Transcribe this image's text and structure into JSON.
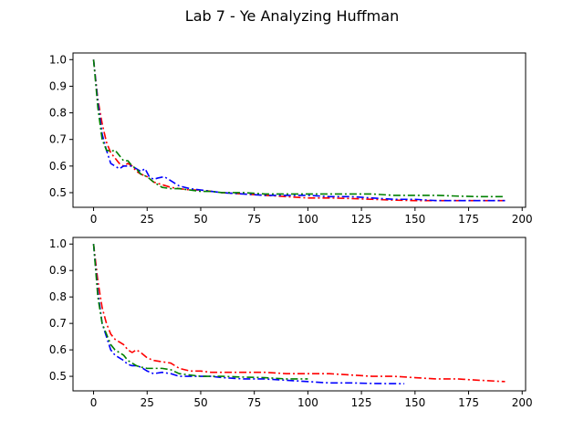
{
  "figure": {
    "suptitle": "Lab 7 - Ye Analyzing Huffman"
  },
  "chart_data": [
    {
      "type": "line",
      "title": "",
      "xlabel": "",
      "ylabel": "",
      "xlim": [
        -9.6,
        201.6
      ],
      "ylim": [
        0.445,
        1.025
      ],
      "xticks": [
        0,
        25,
        50,
        75,
        100,
        125,
        150,
        175,
        200
      ],
      "yticks": [
        0.5,
        0.6,
        0.7,
        0.8,
        0.9,
        1.0
      ],
      "ytick_labels": [
        "0.5",
        "0.6",
        "0.7",
        "0.8",
        "0.9",
        "1.0"
      ],
      "grid": false,
      "series": [
        {
          "color": "#ff0000",
          "style": "dashdot",
          "points": [
            [
              0,
              1.0
            ],
            [
              2,
              0.85
            ],
            [
              4,
              0.76
            ],
            [
              6,
              0.69
            ],
            [
              8,
              0.65
            ],
            [
              10,
              0.63
            ],
            [
              12,
              0.61
            ],
            [
              14,
              0.6
            ],
            [
              16,
              0.61
            ],
            [
              18,
              0.6
            ],
            [
              20,
              0.58
            ],
            [
              22,
              0.57
            ],
            [
              25,
              0.56
            ],
            [
              28,
              0.54
            ],
            [
              32,
              0.53
            ],
            [
              36,
              0.52
            ],
            [
              40,
              0.515
            ],
            [
              45,
              0.51
            ],
            [
              50,
              0.51
            ],
            [
              55,
              0.505
            ],
            [
              60,
              0.5
            ],
            [
              70,
              0.495
            ],
            [
              80,
              0.49
            ],
            [
              90,
              0.485
            ],
            [
              100,
              0.48
            ],
            [
              110,
              0.48
            ],
            [
              120,
              0.478
            ],
            [
              130,
              0.475
            ],
            [
              140,
              0.472
            ],
            [
              150,
              0.47
            ],
            [
              160,
              0.47
            ],
            [
              170,
              0.47
            ],
            [
              180,
              0.47
            ],
            [
              192,
              0.47
            ]
          ]
        },
        {
          "color": "#0000ff",
          "style": "dashdot",
          "points": [
            [
              0,
              1.0
            ],
            [
              2,
              0.84
            ],
            [
              4,
              0.72
            ],
            [
              6,
              0.66
            ],
            [
              8,
              0.61
            ],
            [
              10,
              0.6
            ],
            [
              12,
              0.59
            ],
            [
              14,
              0.6
            ],
            [
              16,
              0.6
            ],
            [
              18,
              0.6
            ],
            [
              20,
              0.59
            ],
            [
              22,
              0.58
            ],
            [
              24,
              0.59
            ],
            [
              26,
              0.56
            ],
            [
              28,
              0.55
            ],
            [
              30,
              0.555
            ],
            [
              33,
              0.56
            ],
            [
              36,
              0.545
            ],
            [
              40,
              0.525
            ],
            [
              45,
              0.515
            ],
            [
              50,
              0.51
            ],
            [
              55,
              0.505
            ],
            [
              60,
              0.5
            ],
            [
              70,
              0.495
            ],
            [
              80,
              0.49
            ],
            [
              90,
              0.49
            ],
            [
              100,
              0.49
            ],
            [
              110,
              0.485
            ],
            [
              120,
              0.485
            ],
            [
              130,
              0.48
            ],
            [
              140,
              0.475
            ],
            [
              150,
              0.475
            ],
            [
              160,
              0.47
            ],
            [
              170,
              0.47
            ],
            [
              180,
              0.47
            ],
            [
              192,
              0.47
            ]
          ]
        },
        {
          "color": "#008000",
          "style": "dashdot",
          "points": [
            [
              0,
              1.0
            ],
            [
              2,
              0.82
            ],
            [
              4,
              0.7
            ],
            [
              6,
              0.66
            ],
            [
              8,
              0.655
            ],
            [
              10,
              0.66
            ],
            [
              12,
              0.64
            ],
            [
              14,
              0.62
            ],
            [
              16,
              0.62
            ],
            [
              18,
              0.6
            ],
            [
              20,
              0.59
            ],
            [
              22,
              0.57
            ],
            [
              25,
              0.56
            ],
            [
              28,
              0.54
            ],
            [
              32,
              0.52
            ],
            [
              36,
              0.515
            ],
            [
              40,
              0.515
            ],
            [
              45,
              0.51
            ],
            [
              50,
              0.505
            ],
            [
              55,
              0.505
            ],
            [
              60,
              0.5
            ],
            [
              70,
              0.5
            ],
            [
              80,
              0.495
            ],
            [
              90,
              0.495
            ],
            [
              100,
              0.495
            ],
            [
              110,
              0.495
            ],
            [
              120,
              0.495
            ],
            [
              130,
              0.495
            ],
            [
              140,
              0.49
            ],
            [
              150,
              0.49
            ],
            [
              160,
              0.49
            ],
            [
              170,
              0.487
            ],
            [
              180,
              0.485
            ],
            [
              192,
              0.485
            ]
          ]
        }
      ]
    },
    {
      "type": "line",
      "title": "",
      "xlabel": "",
      "ylabel": "",
      "xlim": [
        -9.6,
        201.6
      ],
      "ylim": [
        0.445,
        1.025
      ],
      "xticks": [
        0,
        25,
        50,
        75,
        100,
        125,
        150,
        175,
        200
      ],
      "yticks": [
        0.5,
        0.6,
        0.7,
        0.8,
        0.9,
        1.0
      ],
      "ytick_labels": [
        "0.5",
        "0.6",
        "0.7",
        "0.8",
        "0.9",
        "1.0"
      ],
      "grid": false,
      "series": [
        {
          "color": "#ff0000",
          "style": "dashdot",
          "points": [
            [
              0,
              1.0
            ],
            [
              2,
              0.86
            ],
            [
              4,
              0.76
            ],
            [
              6,
              0.7
            ],
            [
              8,
              0.66
            ],
            [
              10,
              0.64
            ],
            [
              12,
              0.63
            ],
            [
              14,
              0.62
            ],
            [
              16,
              0.6
            ],
            [
              18,
              0.59
            ],
            [
              20,
              0.6
            ],
            [
              22,
              0.59
            ],
            [
              25,
              0.57
            ],
            [
              28,
              0.56
            ],
            [
              32,
              0.555
            ],
            [
              36,
              0.55
            ],
            [
              40,
              0.53
            ],
            [
              45,
              0.52
            ],
            [
              50,
              0.52
            ],
            [
              55,
              0.515
            ],
            [
              60,
              0.515
            ],
            [
              70,
              0.515
            ],
            [
              80,
              0.515
            ],
            [
              90,
              0.51
            ],
            [
              100,
              0.51
            ],
            [
              110,
              0.51
            ],
            [
              120,
              0.505
            ],
            [
              130,
              0.5
            ],
            [
              140,
              0.5
            ],
            [
              150,
              0.495
            ],
            [
              160,
              0.49
            ],
            [
              170,
              0.49
            ],
            [
              180,
              0.485
            ],
            [
              192,
              0.48
            ]
          ]
        },
        {
          "color": "#0000ff",
          "style": "dashdot",
          "points": [
            [
              0,
              1.0
            ],
            [
              2,
              0.82
            ],
            [
              4,
              0.7
            ],
            [
              6,
              0.65
            ],
            [
              8,
              0.6
            ],
            [
              10,
              0.58
            ],
            [
              12,
              0.57
            ],
            [
              14,
              0.56
            ],
            [
              16,
              0.545
            ],
            [
              18,
              0.54
            ],
            [
              20,
              0.54
            ],
            [
              22,
              0.535
            ],
            [
              25,
              0.52
            ],
            [
              28,
              0.51
            ],
            [
              32,
              0.515
            ],
            [
              36,
              0.51
            ],
            [
              40,
              0.5
            ],
            [
              45,
              0.5
            ],
            [
              50,
              0.5
            ],
            [
              55,
              0.5
            ],
            [
              60,
              0.495
            ],
            [
              70,
              0.49
            ],
            [
              80,
              0.49
            ],
            [
              90,
              0.485
            ],
            [
              100,
              0.48
            ],
            [
              110,
              0.475
            ],
            [
              120,
              0.475
            ],
            [
              130,
              0.473
            ],
            [
              145,
              0.472
            ]
          ]
        },
        {
          "color": "#008000",
          "style": "dashdot",
          "points": [
            [
              0,
              1.0
            ],
            [
              2,
              0.8
            ],
            [
              4,
              0.7
            ],
            [
              6,
              0.66
            ],
            [
              8,
              0.62
            ],
            [
              10,
              0.6
            ],
            [
              12,
              0.59
            ],
            [
              14,
              0.58
            ],
            [
              16,
              0.56
            ],
            [
              18,
              0.55
            ],
            [
              20,
              0.54
            ],
            [
              22,
              0.535
            ],
            [
              25,
              0.53
            ],
            [
              28,
              0.53
            ],
            [
              32,
              0.53
            ],
            [
              36,
              0.525
            ],
            [
              40,
              0.51
            ],
            [
              45,
              0.505
            ],
            [
              50,
              0.5
            ],
            [
              55,
              0.5
            ],
            [
              60,
              0.5
            ],
            [
              70,
              0.497
            ],
            [
              80,
              0.495
            ],
            [
              90,
              0.49
            ],
            [
              100,
              0.49
            ]
          ]
        }
      ]
    }
  ]
}
